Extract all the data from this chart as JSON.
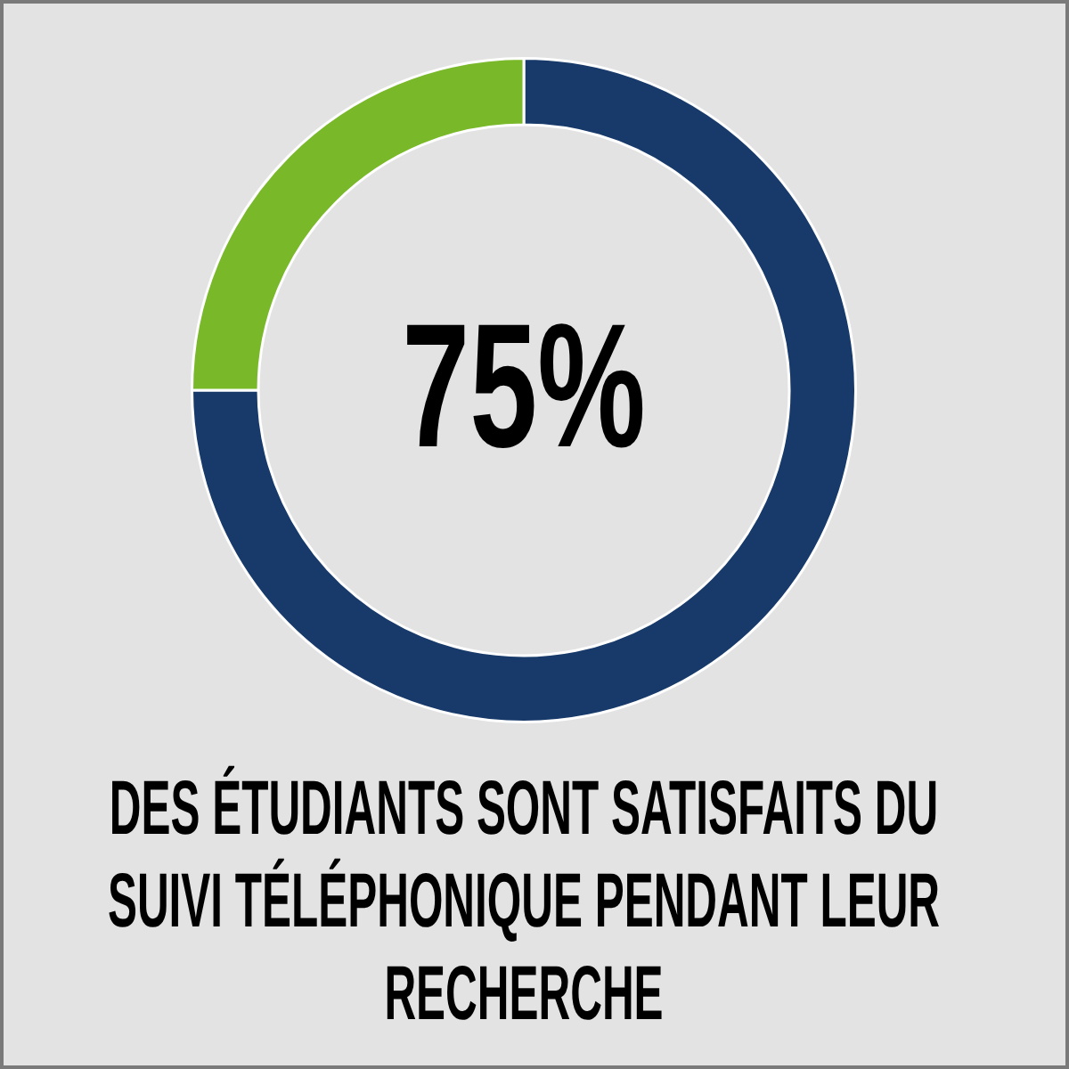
{
  "chart_data": {
    "type": "donut",
    "categories": [
      null,
      null
    ],
    "values": [
      75,
      25
    ],
    "colors": [
      "#173a6a",
      "#79b829"
    ],
    "value_labels": [
      "75%",
      null
    ],
    "annotations": [
      "DES ÉTUDIANTS SONT SATISFAITS DU SUIVI TÉLÉPHONIQUE PENDANT LEUR RECHERCHE"
    ]
  }
}
